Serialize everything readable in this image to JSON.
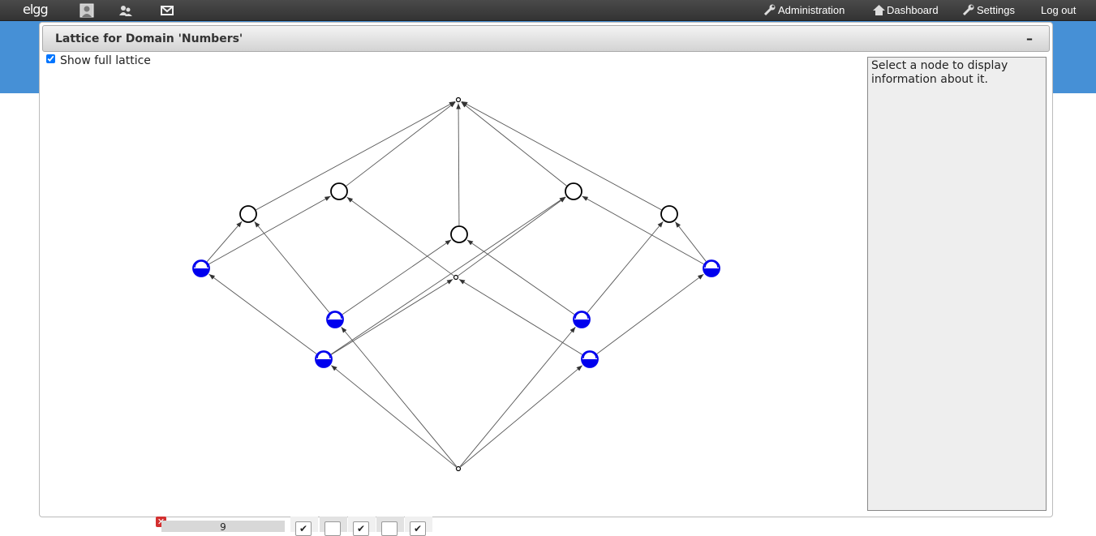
{
  "topbar": {
    "logo": "elgg",
    "icons": [
      "profile-icon",
      "friends-icon",
      "messages-icon"
    ],
    "links": [
      {
        "label": "Administration",
        "icon": "wrench-icon"
      },
      {
        "label": "Dashboard",
        "icon": "home-icon"
      },
      {
        "label": "Settings",
        "icon": "wrench-icon"
      },
      {
        "label": "Log out",
        "icon": ""
      }
    ]
  },
  "panel": {
    "title": "Lattice for Domain 'Numbers'",
    "collapse_label": "–",
    "show_full_lattice_label": "Show full lattice",
    "show_full_lattice_checked": true,
    "info_text": "Select a node to display information about it."
  },
  "bottom": {
    "close_label": "✕",
    "number_value": "9",
    "checkboxes": [
      "✔",
      "",
      "✔",
      "",
      "✔"
    ]
  },
  "colors": {
    "accent": "#4690d6",
    "object_node_fill": "#0000ee",
    "topbar": "#3c3c3c"
  }
}
